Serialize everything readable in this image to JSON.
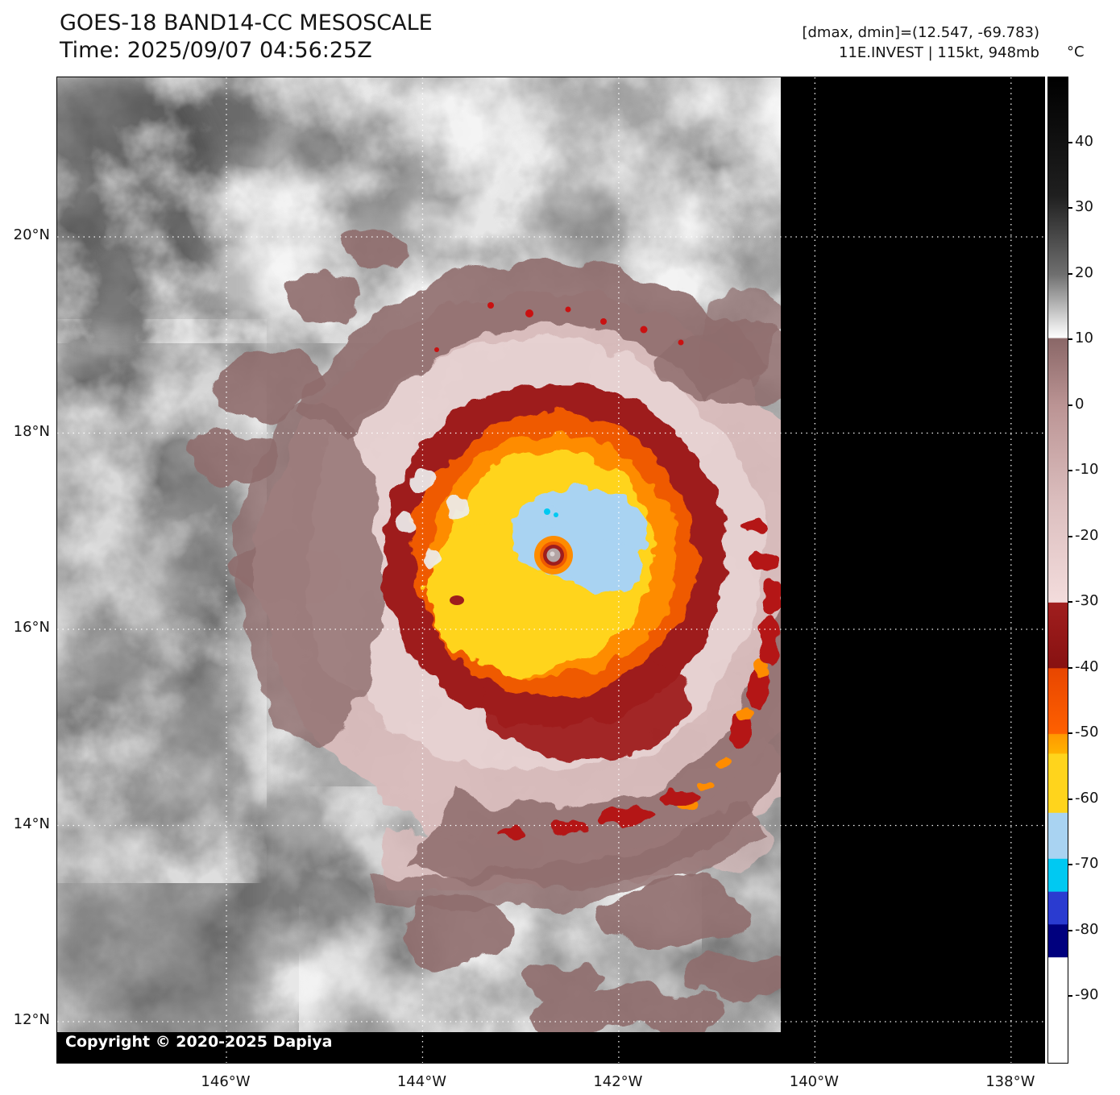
{
  "header": {
    "title": "GOES-18 BAND14-CC MESOSCALE",
    "time_line": "Time: 2025/09/07 04:56:25Z",
    "dmax_dmin": "[dmax, dmin]=(12.547, -69.783)",
    "storm_info": "11E.INVEST | 115kt, 948mb"
  },
  "colorbar": {
    "unit": "°C",
    "range": [
      50,
      -100
    ],
    "tick_labels": [
      "40",
      "30",
      "20",
      "10",
      "0",
      "-10",
      "-20",
      "-30",
      "-40",
      "-50",
      "-60",
      "-70",
      "-80",
      "-90"
    ],
    "tick_values": [
      40,
      30,
      20,
      10,
      0,
      -10,
      -20,
      -30,
      -40,
      -50,
      -60,
      -70,
      -80,
      -90
    ],
    "stops": [
      {
        "t": 50,
        "c": "#000000"
      },
      {
        "t": 32,
        "c": "#1f1f1f"
      },
      {
        "t": 20,
        "c": "#6f6f6f"
      },
      {
        "t": 12,
        "c": "#e8e8e8"
      },
      {
        "t": 10.4,
        "c": "#fdfdfd"
      },
      {
        "t": 10.2,
        "c": "#8a6767"
      },
      {
        "t": 0,
        "c": "#bb9494"
      },
      {
        "t": -15,
        "c": "#dcbfbf"
      },
      {
        "t": -29.9,
        "c": "#f3dcdc"
      },
      {
        "t": -30,
        "c": "#a01e1e"
      },
      {
        "t": -39.9,
        "c": "#871111"
      },
      {
        "t": -40,
        "c": "#e84600"
      },
      {
        "t": -49.9,
        "c": "#fe6000"
      },
      {
        "t": -50,
        "c": "#ff9800"
      },
      {
        "t": -52.9,
        "c": "#ffb200"
      },
      {
        "t": -53,
        "c": "#ffd41c"
      },
      {
        "t": -61.9,
        "c": "#ffd41c"
      },
      {
        "t": -62,
        "c": "#a9d3f2"
      },
      {
        "t": -68.9,
        "c": "#a9d3f2"
      },
      {
        "t": -69,
        "c": "#00c9f2"
      },
      {
        "t": -73.9,
        "c": "#00c9f2"
      },
      {
        "t": -74,
        "c": "#2a3bd0"
      },
      {
        "t": -78.9,
        "c": "#2a3bd0"
      },
      {
        "t": -79,
        "c": "#00007e"
      },
      {
        "t": -83.9,
        "c": "#00007e"
      },
      {
        "t": -84,
        "c": "#ffffff"
      },
      {
        "t": -100,
        "c": "#ffffff"
      }
    ]
  },
  "map": {
    "lat_ticks": [
      {
        "label": "20°N",
        "deg": 20
      },
      {
        "label": "18°N",
        "deg": 18
      },
      {
        "label": "16°N",
        "deg": 16
      },
      {
        "label": "14°N",
        "deg": 14
      },
      {
        "label": "12°N",
        "deg": 12
      }
    ],
    "lon_ticks": [
      {
        "label": "146°W",
        "deg": 146
      },
      {
        "label": "144°W",
        "deg": 144
      },
      {
        "label": "142°W",
        "deg": 142
      },
      {
        "label": "140°W",
        "deg": 140
      },
      {
        "label": "138°W",
        "deg": 138
      }
    ],
    "copyright": "Copyright © 2020-2025 Dapiya"
  },
  "palette": {
    "sea": "#7b7b7b",
    "brown": "#8f6d6d",
    "pink": "#d9bcbc",
    "pink_light": "#e9d6d6",
    "dark_red": "#9e1d1d",
    "red": "#b41616",
    "orange_red": "#ef5a00",
    "orange": "#fe8c00",
    "yellow": "#ffd41c",
    "light_blue": "#a9d3f2",
    "cyan": "#00c9f2",
    "eye_gray": "#b3a4a4",
    "grid": "#ffffff",
    "nodata": "#000000"
  }
}
